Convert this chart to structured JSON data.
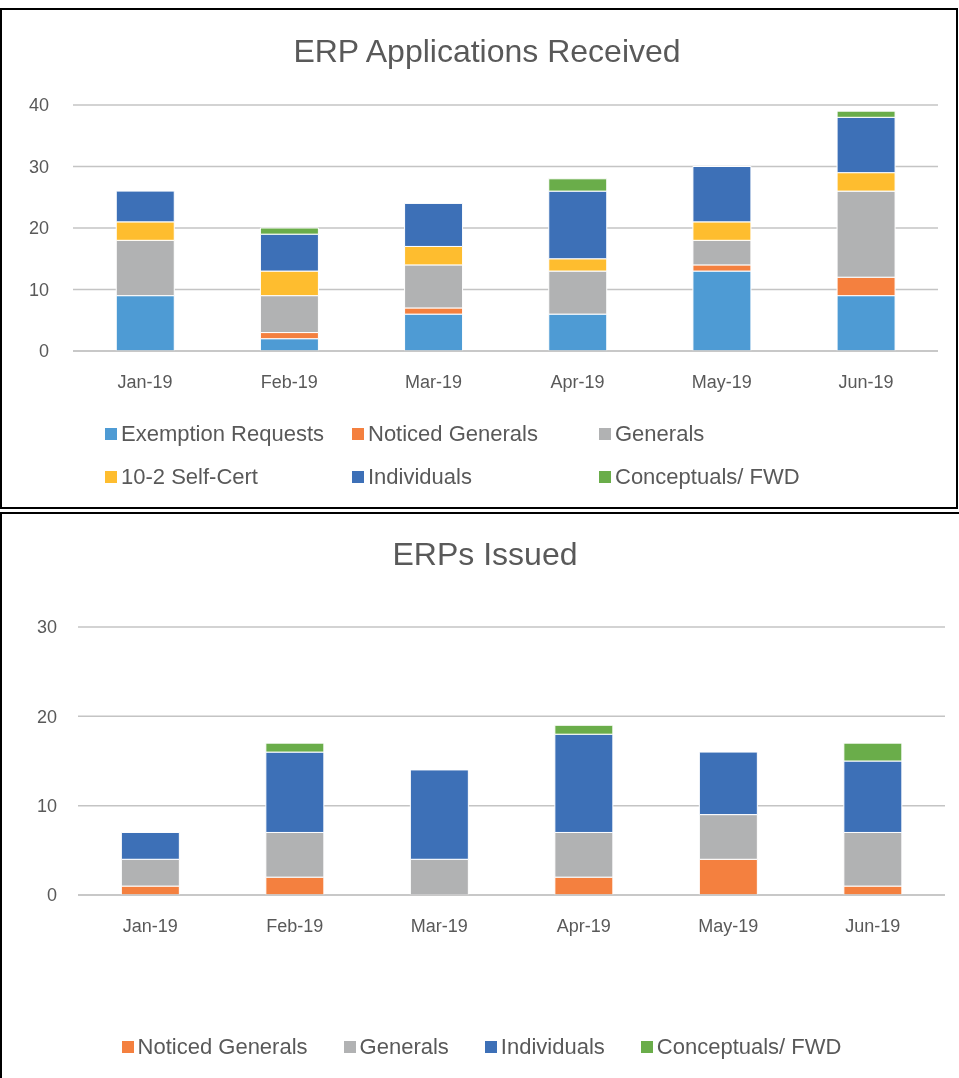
{
  "chart_data": [
    {
      "type": "bar",
      "title": "ERP Applications Received",
      "categories": [
        "Jan-19",
        "Feb-19",
        "Mar-19",
        "Apr-19",
        "May-19",
        "Jun-19"
      ],
      "stacked": true,
      "series": [
        {
          "name": "Exemption Requests",
          "color": "#4e9bd4",
          "values": [
            9,
            2,
            6,
            6,
            13,
            9
          ]
        },
        {
          "name": "Noticed Generals",
          "color": "#f4803f",
          "values": [
            0,
            1,
            1,
            0,
            1,
            3
          ]
        },
        {
          "name": "Generals",
          "color": "#b1b2b3",
          "values": [
            9,
            6,
            7,
            7,
            4,
            14
          ]
        },
        {
          "name": "10-2 Self-Cert",
          "color": "#febd2f",
          "values": [
            3,
            4,
            3,
            2,
            3,
            3
          ]
        },
        {
          "name": "Individuals",
          "color": "#3d70b7",
          "values": [
            5,
            6,
            7,
            11,
            9,
            9
          ]
        },
        {
          "name": "Conceptuals/ FWD",
          "color": "#6aad4a",
          "values": [
            0,
            1,
            0,
            2,
            0,
            1
          ]
        }
      ],
      "ylim": [
        0,
        40
      ],
      "yticks": [
        0,
        10,
        20,
        30,
        40
      ],
      "grid": "y",
      "legend": "bottom"
    },
    {
      "type": "bar",
      "title": "ERPs Issued",
      "categories": [
        "Jan-19",
        "Feb-19",
        "Mar-19",
        "Apr-19",
        "May-19",
        "Jun-19"
      ],
      "stacked": true,
      "series": [
        {
          "name": "Noticed Generals",
          "color": "#f4803f",
          "values": [
            1,
            2,
            0,
            2,
            4,
            1
          ]
        },
        {
          "name": "Generals",
          "color": "#b1b2b3",
          "values": [
            3,
            5,
            4,
            5,
            5,
            6
          ]
        },
        {
          "name": "Individuals",
          "color": "#3d70b7",
          "values": [
            3,
            9,
            10,
            11,
            7,
            8
          ]
        },
        {
          "name": "Conceptuals/ FWD",
          "color": "#6aad4a",
          "values": [
            0,
            1,
            0,
            1,
            0,
            2
          ]
        }
      ],
      "ylim": [
        0,
        30
      ],
      "yticks": [
        0,
        10,
        20,
        30
      ],
      "grid": "y",
      "legend": "bottom"
    }
  ]
}
